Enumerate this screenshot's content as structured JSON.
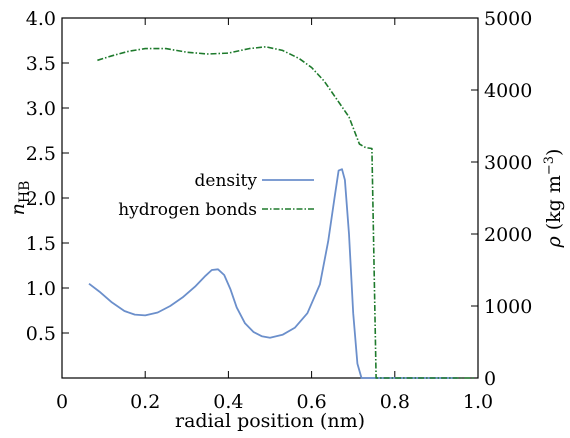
{
  "chart_data": {
    "type": "line",
    "xlabel": "radial position (nm)",
    "ylabel_left": {
      "main": "n",
      "sub": "HB"
    },
    "ylabel_right": {
      "main": "ρ",
      "unit_open": " (kg m",
      "unit_sup": "−3",
      "unit_close": ")"
    },
    "xlim": [
      0,
      1.0
    ],
    "ylim_left": [
      0,
      4.0
    ],
    "ylim_right": [
      0,
      5000
    ],
    "x_ticks": [
      "0",
      "0.2",
      "0.4",
      "0.6",
      "0.8",
      "1.0"
    ],
    "y_left_ticks": [
      "0.5",
      "1.0",
      "1.5",
      "2.0",
      "2.5",
      "3.0",
      "3.5",
      "4.0"
    ],
    "y_right_ticks": [
      "0",
      "1000",
      "2000",
      "3000",
      "4000",
      "5000"
    ],
    "legend": [
      "density",
      "hydrogen bonds"
    ],
    "grid": false,
    "legend_position": "center-left",
    "colors": {
      "density": "#6b8fcb",
      "hydrogen_bonds": "#1e7a2c"
    },
    "series": [
      {
        "name": "density",
        "axis": "right",
        "points": [
          [
            0.065,
            1310
          ],
          [
            0.09,
            1200
          ],
          [
            0.12,
            1050
          ],
          [
            0.15,
            930
          ],
          [
            0.175,
            880
          ],
          [
            0.2,
            870
          ],
          [
            0.23,
            910
          ],
          [
            0.26,
            1000
          ],
          [
            0.29,
            1120
          ],
          [
            0.32,
            1270
          ],
          [
            0.345,
            1420
          ],
          [
            0.36,
            1500
          ],
          [
            0.375,
            1510
          ],
          [
            0.39,
            1430
          ],
          [
            0.405,
            1230
          ],
          [
            0.42,
            980
          ],
          [
            0.44,
            760
          ],
          [
            0.46,
            640
          ],
          [
            0.48,
            580
          ],
          [
            0.5,
            560
          ],
          [
            0.53,
            600
          ],
          [
            0.56,
            700
          ],
          [
            0.59,
            900
          ],
          [
            0.62,
            1300
          ],
          [
            0.64,
            1900
          ],
          [
            0.655,
            2500
          ],
          [
            0.665,
            2880
          ],
          [
            0.673,
            2900
          ],
          [
            0.68,
            2750
          ],
          [
            0.69,
            2000
          ],
          [
            0.7,
            900
          ],
          [
            0.71,
            200
          ],
          [
            0.72,
            0
          ],
          [
            0.95,
            0
          ]
        ]
      },
      {
        "name": "hydrogen bonds",
        "axis": "left",
        "points": [
          [
            0.085,
            3.53
          ],
          [
            0.12,
            3.58
          ],
          [
            0.16,
            3.63
          ],
          [
            0.2,
            3.66
          ],
          [
            0.25,
            3.66
          ],
          [
            0.3,
            3.62
          ],
          [
            0.35,
            3.6
          ],
          [
            0.4,
            3.61
          ],
          [
            0.45,
            3.66
          ],
          [
            0.49,
            3.68
          ],
          [
            0.53,
            3.64
          ],
          [
            0.57,
            3.55
          ],
          [
            0.6,
            3.45
          ],
          [
            0.63,
            3.3
          ],
          [
            0.66,
            3.1
          ],
          [
            0.69,
            2.9
          ],
          [
            0.715,
            2.6
          ],
          [
            0.73,
            2.56
          ],
          [
            0.745,
            2.55
          ],
          [
            0.755,
            0
          ],
          [
            0.99,
            0
          ]
        ]
      }
    ]
  }
}
